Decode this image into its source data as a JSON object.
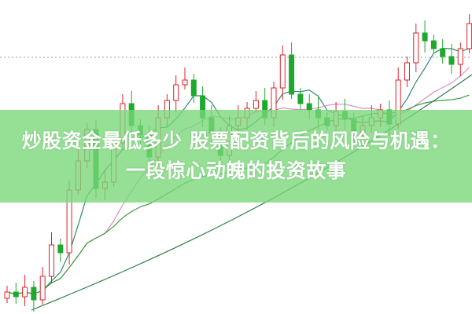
{
  "title": {
    "line1": "炒股资金最低多少 股票配资背后的风险与机遇：",
    "line2": "一段惊心动魄的投资故事"
  },
  "colors": {
    "up": "#e0202a",
    "down": "#1fa82e",
    "banner": "#78d778",
    "ma_short": "#2c8a6a",
    "ma_mid": "#d98fbf",
    "ma_long": "#3d9a3d"
  }
}
